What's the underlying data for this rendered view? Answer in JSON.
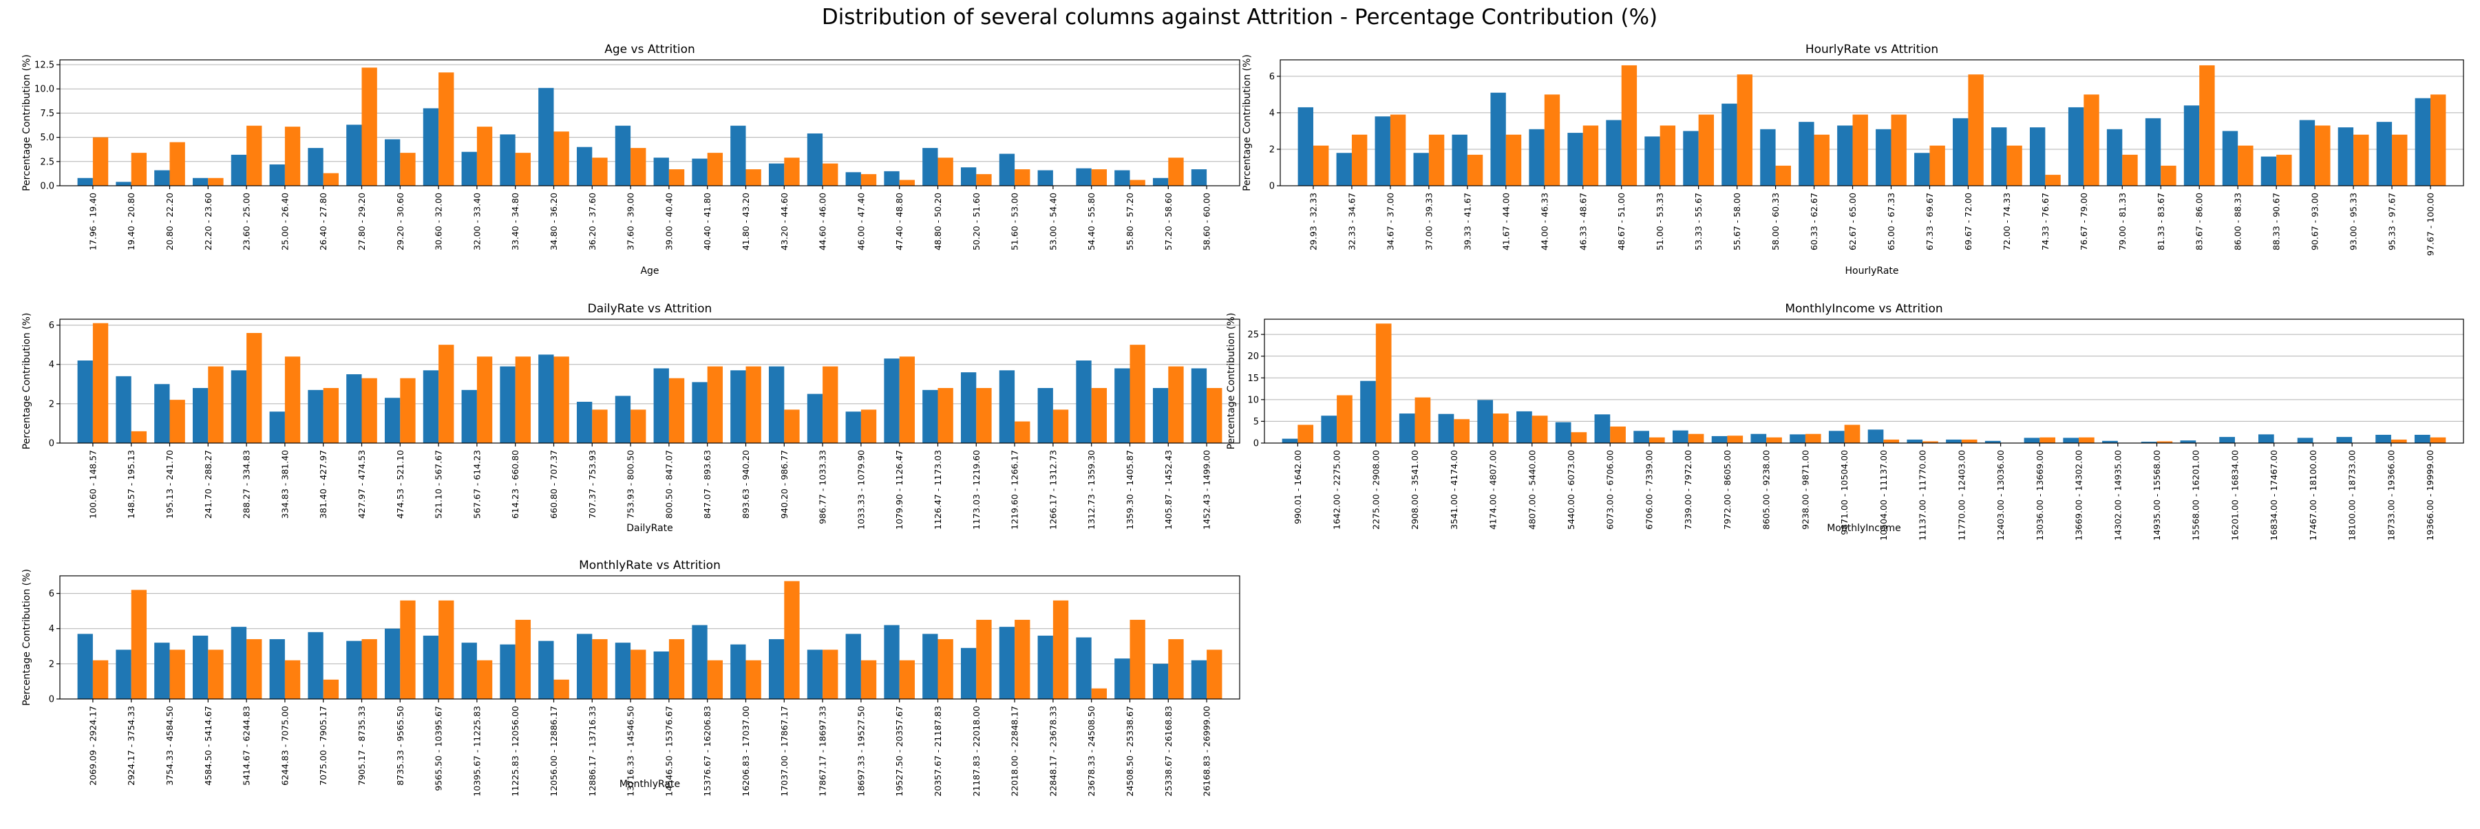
{
  "figure": {
    "title": "Distribution of several columns against Attrition - Percentage Contribution (%)"
  },
  "colors": {
    "series_0": "#1f77b4",
    "series_1": "#ff7f0e"
  },
  "chart_data": [
    {
      "type": "bar",
      "title": "Age vs Attrition",
      "xlabel": "Age",
      "ylabel": "Percentage Contribution (%)",
      "ylim": [
        0,
        13
      ],
      "yticks": [
        0.0,
        2.5,
        5.0,
        7.5,
        10.0,
        12.5
      ],
      "ytick_labels": [
        "0.0",
        "2.5",
        "5.0",
        "7.5",
        "10.0",
        "12.5"
      ],
      "grid": "y",
      "categories": [
        "17.96 - 19.40",
        "19.40 - 20.80",
        "20.80 - 22.20",
        "22.20 - 23.60",
        "23.60 - 25.00",
        "25.00 - 26.40",
        "26.40 - 27.80",
        "27.80 - 29.20",
        "29.20 - 30.60",
        "30.60 - 32.00",
        "32.00 - 33.40",
        "33.40 - 34.80",
        "34.80 - 36.20",
        "36.20 - 37.60",
        "37.60 - 39.00",
        "39.00 - 40.40",
        "40.40 - 41.80",
        "41.80 - 43.20",
        "43.20 - 44.60",
        "44.60 - 46.00",
        "46.00 - 47.40",
        "47.40 - 48.80",
        "48.80 - 50.20",
        "50.20 - 51.60",
        "51.60 - 53.00",
        "53.00 - 54.40",
        "54.40 - 55.80",
        "55.80 - 57.20",
        "57.20 - 58.60",
        "58.60 - 60.00"
      ],
      "series": [
        {
          "values": [
            0.8,
            0.4,
            1.6,
            0.8,
            3.2,
            2.2,
            3.9,
            6.3,
            4.8,
            8.0,
            3.5,
            5.3,
            10.1,
            4.0,
            6.2,
            2.9,
            2.8,
            6.2,
            2.3,
            5.4,
            1.4,
            1.5,
            3.9,
            1.9,
            3.3,
            1.6,
            1.8,
            1.6,
            0.8,
            1.7
          ]
        },
        {
          "values": [
            5.0,
            3.4,
            4.5,
            0.8,
            6.2,
            6.1,
            1.3,
            12.2,
            3.4,
            11.7,
            6.1,
            3.4,
            5.6,
            2.9,
            3.9,
            1.7,
            3.4,
            1.7,
            2.9,
            2.3,
            1.2,
            0.6,
            2.9,
            1.2,
            1.7,
            0.0,
            1.7,
            0.6,
            2.9,
            0.0
          ]
        }
      ]
    },
    {
      "type": "bar",
      "title": "HourlyRate vs Attrition",
      "xlabel": "HourlyRate",
      "ylabel": "Percentage Contribution (%)",
      "ylim": [
        0,
        6.9
      ],
      "yticks": [
        0,
        2,
        4,
        6
      ],
      "ytick_labels": [
        "0",
        "2",
        "4",
        "6"
      ],
      "grid": "y",
      "categories": [
        "29.93 - 32.33",
        "32.33 - 34.67",
        "34.67 - 37.00",
        "37.00 - 39.33",
        "39.33 - 41.67",
        "41.67 - 44.00",
        "44.00 - 46.33",
        "46.33 - 48.67",
        "48.67 - 51.00",
        "51.00 - 53.33",
        "53.33 - 55.67",
        "55.67 - 58.00",
        "58.00 - 60.33",
        "60.33 - 62.67",
        "62.67 - 65.00",
        "65.00 - 67.33",
        "67.33 - 69.67",
        "69.67 - 72.00",
        "72.00 - 74.33",
        "74.33 - 76.67",
        "76.67 - 79.00",
        "79.00 - 81.33",
        "81.33 - 83.67",
        "83.67 - 86.00",
        "86.00 - 88.33",
        "88.33 - 90.67",
        "90.67 - 93.00",
        "93.00 - 95.33",
        "95.33 - 97.67",
        "97.67 - 100.00"
      ],
      "series": [
        {
          "values": [
            4.3,
            1.8,
            3.8,
            1.8,
            2.8,
            5.1,
            3.1,
            2.9,
            3.6,
            2.7,
            3.0,
            4.5,
            3.1,
            3.5,
            3.3,
            3.1,
            1.8,
            3.7,
            3.2,
            3.2,
            4.3,
            3.1,
            3.7,
            4.4,
            3.0,
            1.6,
            3.6,
            3.2,
            3.5,
            4.8
          ]
        },
        {
          "values": [
            2.2,
            2.8,
            3.9,
            2.8,
            1.7,
            2.8,
            5.0,
            3.3,
            6.6,
            3.3,
            3.9,
            6.1,
            1.1,
            2.8,
            3.9,
            3.9,
            2.2,
            6.1,
            2.2,
            0.6,
            5.0,
            1.7,
            1.1,
            6.6,
            2.2,
            1.7,
            3.3,
            2.8,
            2.8,
            5.0
          ]
        }
      ]
    },
    {
      "type": "bar",
      "title": "DailyRate vs Attrition",
      "xlabel": "DailyRate",
      "ylabel": "Percentage Contribution (%)",
      "ylim": [
        0,
        6.3
      ],
      "yticks": [
        0,
        2,
        4,
        6
      ],
      "ytick_labels": [
        "0",
        "2",
        "4",
        "6"
      ],
      "grid": "y",
      "categories": [
        "100.60 - 148.57",
        "148.57 - 195.13",
        "195.13 - 241.70",
        "241.70 - 288.27",
        "288.27 - 334.83",
        "334.83 - 381.40",
        "381.40 - 427.97",
        "427.97 - 474.53",
        "474.53 - 521.10",
        "521.10 - 567.67",
        "567.67 - 614.23",
        "614.23 - 660.80",
        "660.80 - 707.37",
        "707.37 - 753.93",
        "753.93 - 800.50",
        "800.50 - 847.07",
        "847.07 - 893.63",
        "893.63 - 940.20",
        "940.20 - 986.77",
        "986.77 - 1033.33",
        "1033.33 - 1079.90",
        "1079.90 - 1126.47",
        "1126.47 - 1173.03",
        "1173.03 - 1219.60",
        "1219.60 - 1266.17",
        "1266.17 - 1312.73",
        "1312.73 - 1359.30",
        "1359.30 - 1405.87",
        "1405.87 - 1452.43",
        "1452.43 - 1499.00"
      ],
      "series": [
        {
          "values": [
            4.2,
            3.4,
            3.0,
            2.8,
            3.7,
            1.6,
            2.7,
            3.5,
            2.3,
            3.7,
            2.7,
            3.9,
            4.5,
            2.1,
            2.4,
            3.8,
            3.1,
            3.7,
            3.9,
            2.5,
            1.6,
            4.3,
            2.7,
            3.6,
            3.7,
            2.8,
            4.2,
            3.8,
            2.8,
            3.8
          ]
        },
        {
          "values": [
            6.1,
            0.6,
            2.2,
            3.9,
            5.6,
            4.4,
            2.8,
            3.3,
            3.3,
            5.0,
            4.4,
            4.4,
            4.4,
            1.7,
            1.7,
            3.3,
            3.9,
            3.9,
            1.7,
            3.9,
            1.7,
            4.4,
            2.8,
            2.8,
            1.1,
            1.7,
            2.8,
            5.0,
            3.9,
            2.8
          ]
        }
      ]
    },
    {
      "type": "bar",
      "title": "MonthlyIncome vs Attrition",
      "xlabel": "MonthlyIncome",
      "ylabel": "Percentage Contribution (%)",
      "ylim": [
        0,
        28.5
      ],
      "yticks": [
        0,
        5,
        10,
        15,
        20,
        25
      ],
      "ytick_labels": [
        "0",
        "5",
        "10",
        "15",
        "20",
        "25"
      ],
      "grid": "y",
      "categories": [
        "990.01 - 1642.00",
        "1642.00 - 2275.00",
        "2275.00 - 2908.00",
        "2908.00 - 3541.00",
        "3541.00 - 4174.00",
        "4174.00 - 4807.00",
        "4807.00 - 5440.00",
        "5440.00 - 6073.00",
        "6073.00 - 6706.00",
        "6706.00 - 7339.00",
        "7339.00 - 7972.00",
        "7972.00 - 8605.00",
        "8605.00 - 9238.00",
        "9238.00 - 9871.00",
        "9871.00 - 10504.00",
        "10504.00 - 11137.00",
        "11137.00 - 11770.00",
        "11770.00 - 12403.00",
        "12403.00 - 13036.00",
        "13036.00 - 13669.00",
        "13669.00 - 14302.00",
        "14302.00 - 14935.00",
        "14935.00 - 15568.00",
        "15568.00 - 16201.00",
        "16201.00 - 16834.00",
        "16834.00 - 17467.00",
        "17467.00 - 18100.00",
        "18100.00 - 18733.00",
        "18733.00 - 19366.00",
        "19366.00 - 19999.00"
      ],
      "series": [
        {
          "values": [
            1.0,
            6.3,
            14.3,
            6.8,
            6.7,
            9.9,
            7.3,
            4.8,
            6.6,
            2.8,
            2.9,
            1.6,
            2.1,
            2.0,
            2.8,
            3.1,
            0.8,
            0.8,
            0.5,
            1.2,
            1.2,
            0.5,
            0.3,
            0.6,
            1.4,
            2.0,
            1.2,
            1.4,
            1.9,
            1.9
          ]
        },
        {
          "values": [
            4.2,
            11.0,
            27.5,
            10.5,
            5.5,
            6.8,
            6.3,
            2.5,
            3.8,
            1.3,
            2.1,
            1.7,
            1.3,
            2.1,
            4.2,
            0.8,
            0.4,
            0.8,
            0.0,
            1.3,
            1.3,
            0.0,
            0.4,
            0.0,
            0.0,
            0.0,
            0.0,
            0.0,
            0.8,
            1.3
          ]
        }
      ]
    },
    {
      "type": "bar",
      "title": "MonthlyRate vs Attrition",
      "xlabel": "MonthlyRate",
      "ylabel": "Percentage Contribution (%)",
      "ylim": [
        0,
        7.0
      ],
      "yticks": [
        0,
        2,
        4,
        6
      ],
      "ytick_labels": [
        "0",
        "2",
        "4",
        "6"
      ],
      "grid": "y",
      "categories": [
        "2069.09 - 2924.17",
        "2924.17 - 3754.33",
        "3754.33 - 4584.50",
        "4584.50 - 5414.67",
        "5414.67 - 6244.83",
        "6244.83 - 7075.00",
        "7075.00 - 7905.17",
        "7905.17 - 8735.33",
        "8735.33 - 9565.50",
        "9565.50 - 10395.67",
        "10395.67 - 11225.83",
        "11225.83 - 12056.00",
        "12056.00 - 12886.17",
        "12886.17 - 13716.33",
        "13716.33 - 14546.50",
        "14546.50 - 15376.67",
        "15376.67 - 16206.83",
        "16206.83 - 17037.00",
        "17037.00 - 17867.17",
        "17867.17 - 18697.33",
        "18697.33 - 19527.50",
        "19527.50 - 20357.67",
        "20357.67 - 21187.83",
        "21187.83 - 22018.00",
        "22018.00 - 22848.17",
        "22848.17 - 23678.33",
        "23678.33 - 24508.50",
        "24508.50 - 25338.67",
        "25338.67 - 26168.83",
        "26168.83 - 26999.00"
      ],
      "series": [
        {
          "values": [
            3.7,
            2.8,
            3.2,
            3.6,
            4.1,
            3.4,
            3.8,
            3.3,
            4.0,
            3.6,
            3.2,
            3.1,
            3.3,
            3.7,
            3.2,
            2.7,
            4.2,
            3.1,
            3.4,
            2.8,
            3.7,
            4.2,
            3.7,
            2.9,
            4.1,
            3.6,
            3.5,
            2.3,
            2.0,
            2.2
          ]
        },
        {
          "values": [
            2.2,
            6.2,
            2.8,
            2.8,
            3.4,
            2.2,
            1.1,
            3.4,
            5.6,
            5.6,
            2.2,
            4.5,
            1.1,
            3.4,
            2.8,
            3.4,
            2.2,
            2.2,
            6.7,
            2.8,
            2.2,
            2.2,
            3.4,
            4.5,
            4.5,
            5.6,
            0.6,
            4.5,
            3.4,
            2.8
          ]
        }
      ]
    }
  ]
}
